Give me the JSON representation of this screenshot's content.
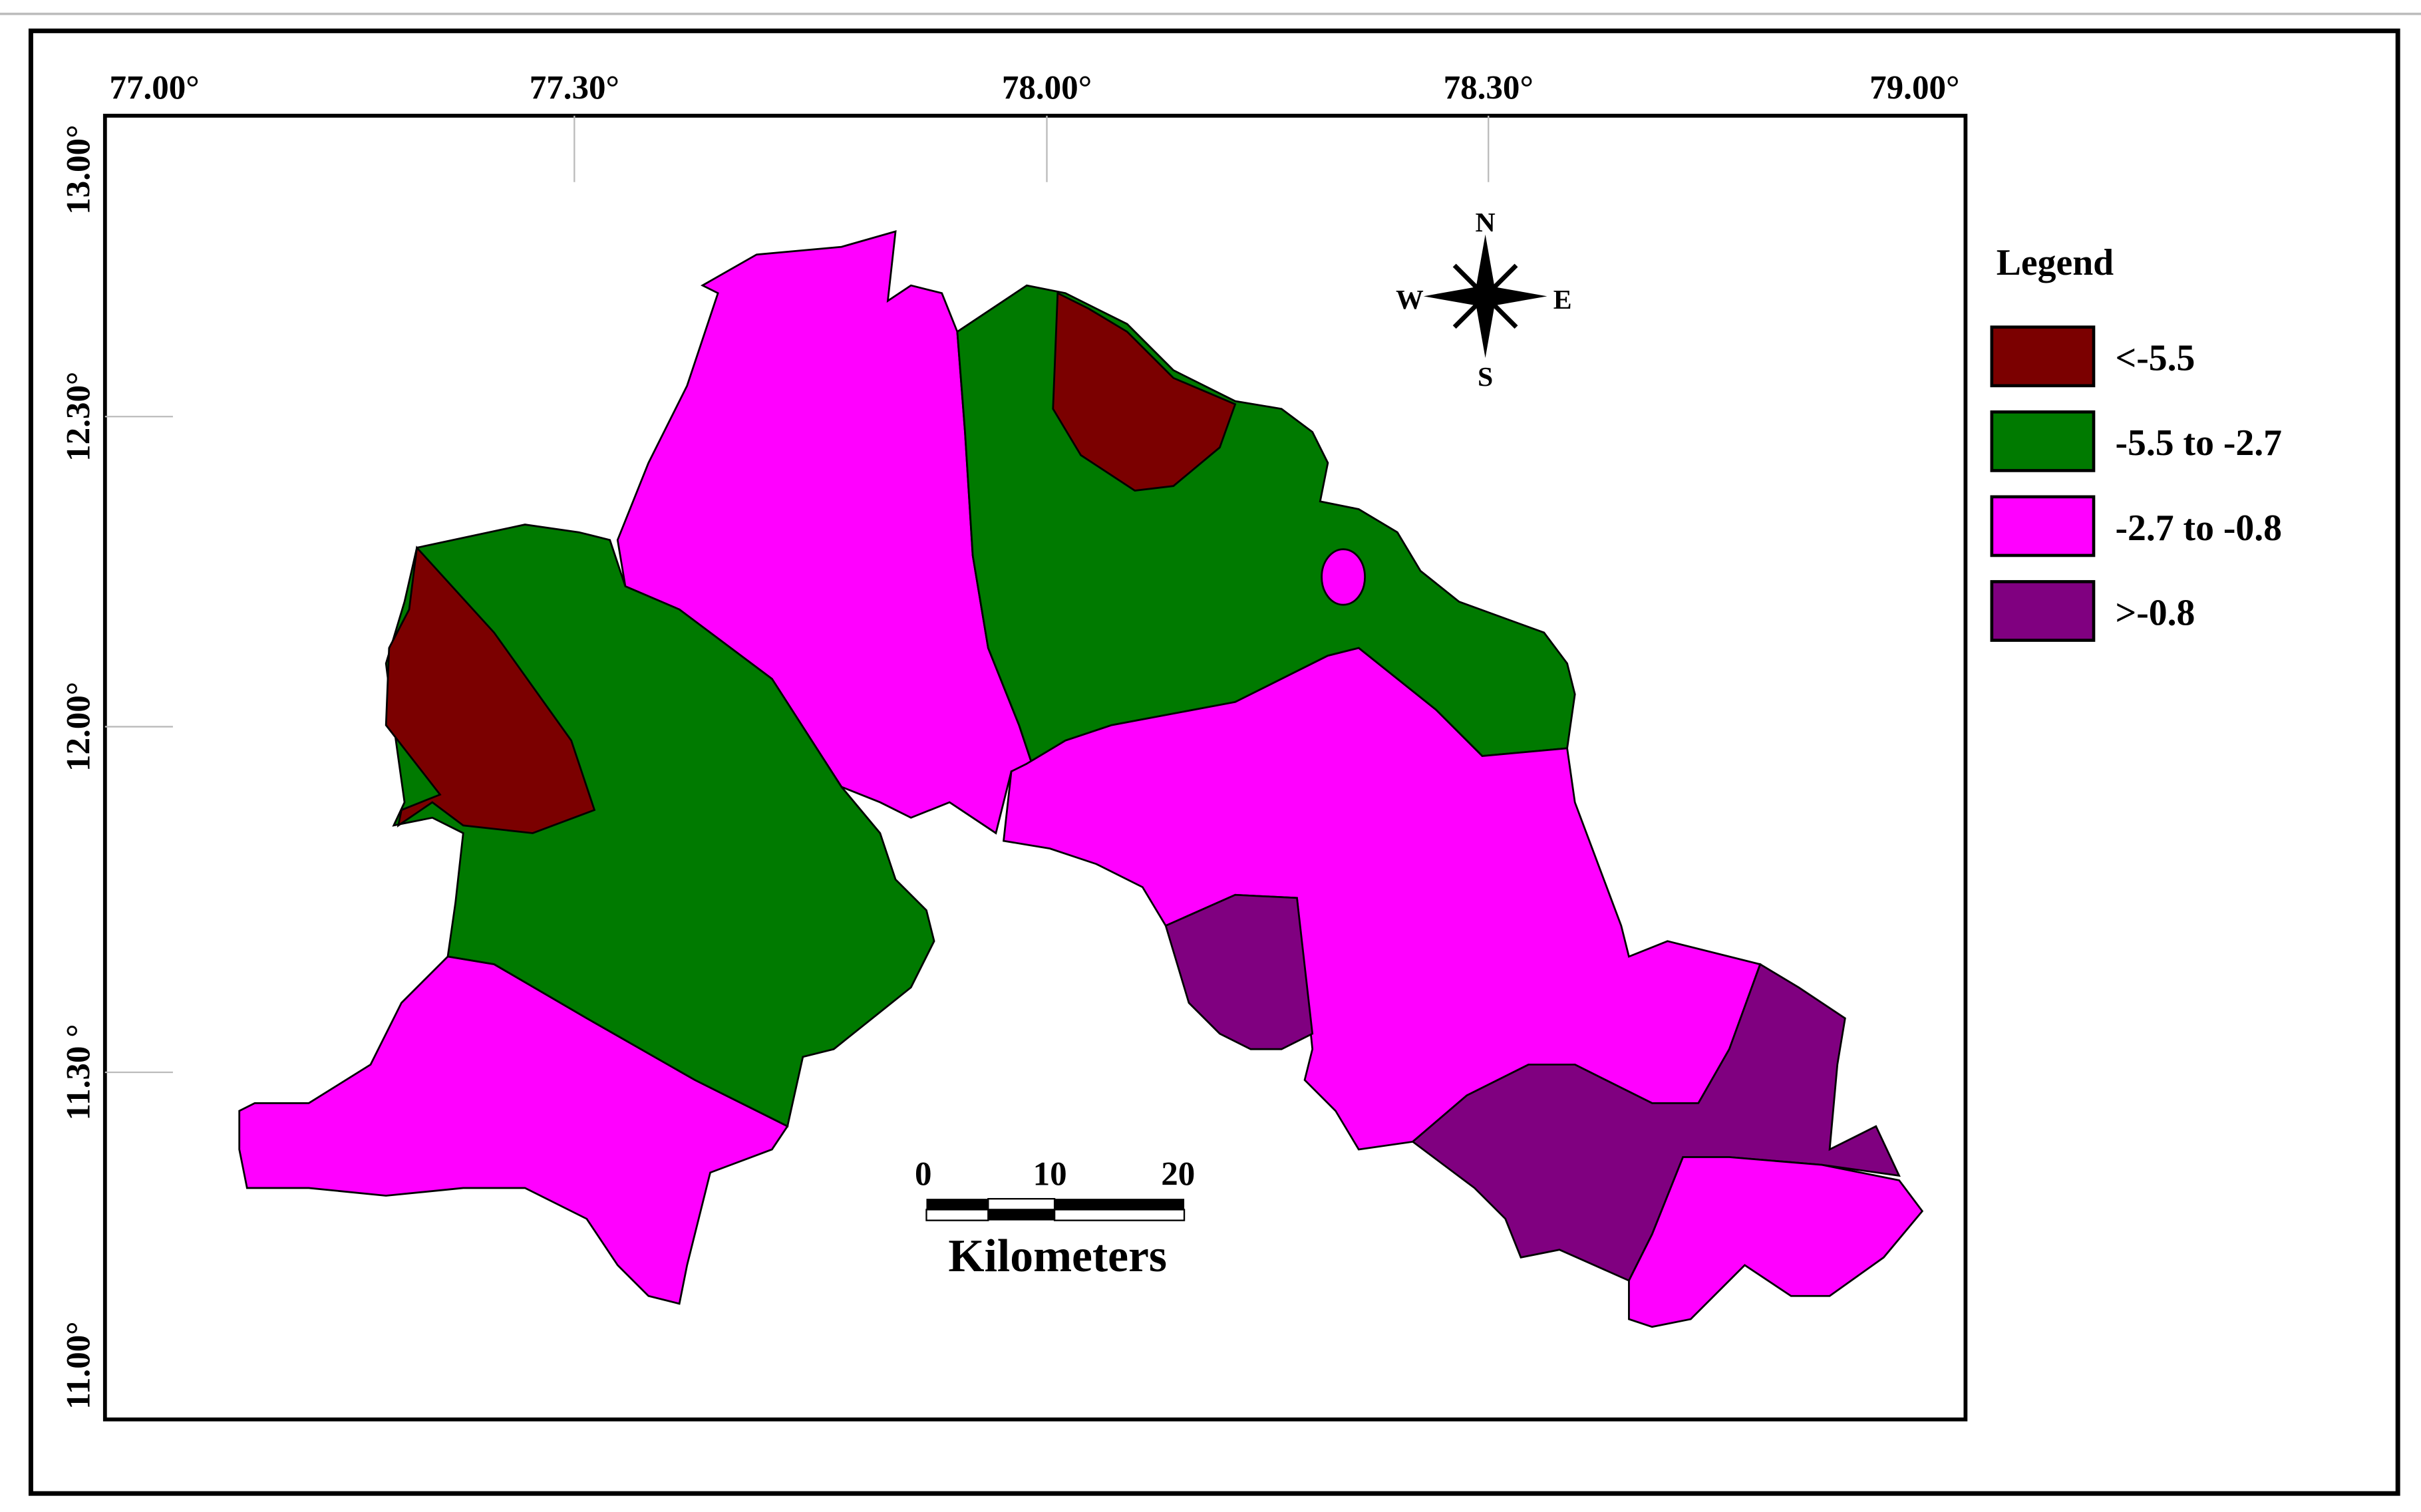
{
  "map": {
    "x_labels": [
      "77.00°",
      "77.30°",
      "78.00°",
      "78.30°",
      "79.00°"
    ],
    "y_labels": [
      "13.00°",
      "12.30°",
      "12.00°",
      "11.30 °",
      "11.00°"
    ],
    "legend": {
      "title": "Legend",
      "items": [
        {
          "label": "<-5.5",
          "color": "#7b0000"
        },
        {
          "label": "-5.5 to -2.7",
          "color": "#007a00"
        },
        {
          "label": "-2.7 to -0.8",
          "color": "#ff00ff"
        },
        {
          "label": ">-0.8",
          "color": "#800080"
        }
      ]
    },
    "compass": {
      "n": "N",
      "s": "S",
      "e": "E",
      "w": "W"
    },
    "scale_bar": {
      "ticks": [
        "0",
        "10",
        "20"
      ],
      "unit": "Kilometers"
    }
  }
}
